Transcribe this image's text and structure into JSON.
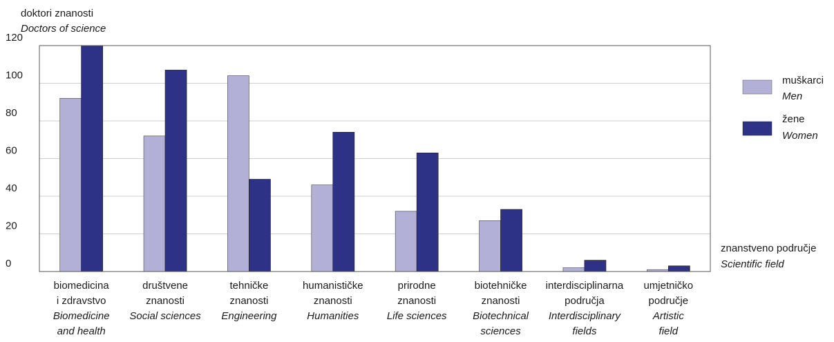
{
  "chart_data": {
    "type": "bar",
    "ylabel": {
      "hr": "doktori znanosti",
      "en": "Doctors of science"
    },
    "xlabel": {
      "hr": "znanstveno područje",
      "en": "Scientific field"
    },
    "ylim": [
      0,
      120
    ],
    "yticks": [
      0,
      20,
      40,
      60,
      80,
      100,
      120
    ],
    "grid": true,
    "legend_position": "right",
    "categories": [
      {
        "hr": [
          "biomedicina",
          "i zdravstvo"
        ],
        "en": [
          "Biomedicine",
          "and health"
        ]
      },
      {
        "hr": [
          "društvene",
          "znanosti"
        ],
        "en": [
          "Social sciences"
        ]
      },
      {
        "hr": [
          "tehničke",
          "znanosti"
        ],
        "en": [
          "Engineering"
        ]
      },
      {
        "hr": [
          "humanističke",
          "znanosti"
        ],
        "en": [
          "Humanities"
        ]
      },
      {
        "hr": [
          "prirodne",
          "znanosti"
        ],
        "en": [
          "Life sciences"
        ]
      },
      {
        "hr": [
          "biotehničke",
          "znanosti"
        ],
        "en": [
          "Biotechnical",
          "sciences"
        ]
      },
      {
        "hr": [
          "interdisciplinarna",
          "područja"
        ],
        "en": [
          "Interdisciplinary",
          "fields"
        ]
      },
      {
        "hr": [
          "umjetničko",
          "područje"
        ],
        "en": [
          "Artistic",
          "field"
        ]
      }
    ],
    "series": [
      {
        "name": {
          "hr": "muškarci",
          "en": "Men"
        },
        "color": "#b3b0d8",
        "values": [
          92,
          72,
          104,
          46,
          32,
          27,
          2,
          1
        ]
      },
      {
        "name": {
          "hr": "žene",
          "en": "Women"
        },
        "color": "#2e3286",
        "values": [
          120,
          107,
          49,
          74,
          63,
          33,
          6,
          3
        ]
      }
    ]
  }
}
